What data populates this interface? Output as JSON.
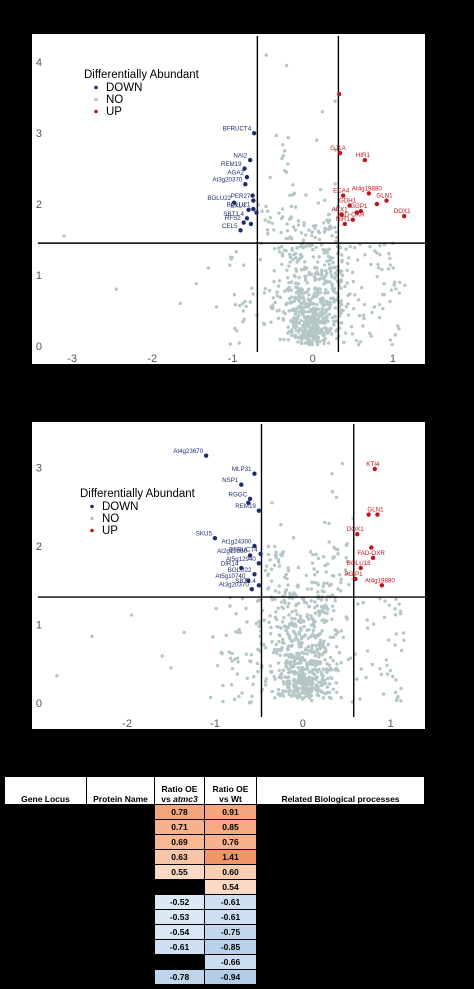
{
  "chart_data": [
    {
      "type": "scatter",
      "panel": "top",
      "xlabel": "",
      "ylabel": "",
      "xlim": [
        -3.3,
        1.3
      ],
      "ylim": [
        0,
        4.2
      ],
      "xticks": [
        -3,
        -2,
        -1,
        0,
        1
      ],
      "yticks": [
        0,
        1,
        2,
        3,
        4
      ],
      "thresholds": {
        "x": [
          -0.69,
          0.32
        ],
        "y": 1.45
      },
      "legend": {
        "title": "Differentially Abundant",
        "entries": [
          "DOWN",
          "NO",
          "UP"
        ],
        "position": "top-left"
      },
      "colors": {
        "DOWN": "#1f2d6b",
        "NO": "#b4c6c6",
        "UP": "#c0141e"
      },
      "down_points": [
        {
          "x": -0.73,
          "y": 3.0,
          "label": "BFRUCT4"
        },
        {
          "x": -0.78,
          "y": 2.62,
          "label": "NAI2"
        },
        {
          "x": -0.85,
          "y": 2.5,
          "label": "REM19"
        },
        {
          "x": -0.82,
          "y": 2.38,
          "label": "AGA2"
        },
        {
          "x": -0.84,
          "y": 2.28,
          "label": "At3g20370"
        },
        {
          "x": -0.74,
          "y": 2.05,
          "label": "PER27"
        },
        {
          "x": -0.98,
          "y": 2.02,
          "label": "BGLU22"
        },
        {
          "x": -0.8,
          "y": 1.92,
          "label": "EXL4"
        },
        {
          "x": -0.74,
          "y": 1.93,
          "label": "BGLU21"
        },
        {
          "x": -0.82,
          "y": 1.8,
          "label": "SBT1.4"
        },
        {
          "x": -0.86,
          "y": 1.74,
          "label": "RFS2"
        },
        {
          "x": -0.9,
          "y": 1.63,
          "label": "CEL5"
        },
        {
          "x": -0.75,
          "y": 2.12,
          "label": ""
        },
        {
          "x": -0.7,
          "y": 1.88,
          "label": ""
        },
        {
          "x": -0.77,
          "y": 1.72,
          "label": ""
        }
      ],
      "up_points": [
        {
          "x": 0.33,
          "y": 3.55,
          "label": ""
        },
        {
          "x": 0.34,
          "y": 2.72,
          "label": "GJ1A"
        },
        {
          "x": 0.65,
          "y": 2.62,
          "label": "HIR1"
        },
        {
          "x": 0.7,
          "y": 2.15,
          "label": "At4g19880"
        },
        {
          "x": 0.38,
          "y": 2.12,
          "label": "ECA4"
        },
        {
          "x": 0.46,
          "y": 1.98,
          "label": "GDH1"
        },
        {
          "x": 0.92,
          "y": 2.05,
          "label": "GLN1"
        },
        {
          "x": 0.6,
          "y": 1.9,
          "label": "GGP1"
        },
        {
          "x": 0.36,
          "y": 1.85,
          "label": "ACX1"
        },
        {
          "x": 0.5,
          "y": 1.78,
          "label": "FAD-OXR"
        },
        {
          "x": 0.4,
          "y": 1.72,
          "label": "NIR1"
        },
        {
          "x": 1.14,
          "y": 1.83,
          "label": "DOX1"
        },
        {
          "x": 0.8,
          "y": 2.0,
          "label": ""
        },
        {
          "x": 0.55,
          "y": 1.88,
          "label": ""
        }
      ],
      "no_points_outliers": [
        [
          -3.1,
          1.55
        ],
        [
          -2.45,
          0.8
        ],
        [
          -1.65,
          0.6
        ],
        [
          -1.45,
          0.88
        ],
        [
          -1.3,
          1.1
        ],
        [
          -1.2,
          0.55
        ],
        [
          -0.58,
          4.1
        ],
        [
          0.28,
          3.45
        ],
        [
          0.12,
          3.3
        ],
        [
          0.05,
          2.9
        ],
        [
          -0.35,
          2.75
        ],
        [
          0.82,
          1.1
        ],
        [
          0.95,
          1.3
        ]
      ]
    },
    {
      "type": "scatter",
      "panel": "bottom",
      "xlabel": "",
      "ylabel": "",
      "xlim": [
        -2.9,
        1.3
      ],
      "ylim": [
        -0.1,
        3.4
      ],
      "xticks": [
        -2,
        -1,
        0,
        1
      ],
      "yticks": [
        0,
        1,
        2,
        3
      ],
      "thresholds": {
        "x": [
          -0.47,
          0.58
        ],
        "y": 1.35
      },
      "legend": {
        "title": "Differentially Abundant",
        "entries": [
          "DOWN",
          "NO",
          "UP"
        ],
        "position": "top-left"
      },
      "colors": {
        "DOWN": "#1f2d6b",
        "NO": "#b4c6c6",
        "UP": "#c0141e"
      },
      "down_points": [
        {
          "x": -1.1,
          "y": 3.15,
          "label": "At4g23670"
        },
        {
          "x": -0.55,
          "y": 2.92,
          "label": "MLP31"
        },
        {
          "x": -0.7,
          "y": 2.78,
          "label": "NSP1"
        },
        {
          "x": -0.6,
          "y": 2.6,
          "label": "RGGC"
        },
        {
          "x": -0.5,
          "y": 2.45,
          "label": "REM19"
        },
        {
          "x": -1.0,
          "y": 2.1,
          "label": "SKU5"
        },
        {
          "x": -0.55,
          "y": 2.0,
          "label": "At1g24300"
        },
        {
          "x": -0.48,
          "y": 1.9,
          "label": "BFRUCT4"
        },
        {
          "x": -0.6,
          "y": 1.88,
          "label": "At2g19880"
        },
        {
          "x": -0.5,
          "y": 1.78,
          "label": "At5g12940"
        },
        {
          "x": -0.7,
          "y": 1.72,
          "label": "DIR14"
        },
        {
          "x": -0.55,
          "y": 1.64,
          "label": "BGLU22"
        },
        {
          "x": -0.62,
          "y": 1.56,
          "label": "At5g10740"
        },
        {
          "x": -0.5,
          "y": 1.5,
          "label": "SBT1.4"
        },
        {
          "x": -0.58,
          "y": 1.45,
          "label": "At3g20370"
        },
        {
          "x": -0.62,
          "y": 2.55,
          "label": ""
        }
      ],
      "up_points": [
        {
          "x": 0.82,
          "y": 2.98,
          "label": "KTI4"
        },
        {
          "x": 0.85,
          "y": 2.4,
          "label": "GLN1"
        },
        {
          "x": 0.62,
          "y": 2.15,
          "label": "DOX1"
        },
        {
          "x": 0.8,
          "y": 1.85,
          "label": "FAD-OXR"
        },
        {
          "x": 0.66,
          "y": 1.72,
          "label": "BGLU18"
        },
        {
          "x": 0.6,
          "y": 1.58,
          "label": "PGIP1"
        },
        {
          "x": 0.9,
          "y": 1.5,
          "label": "At4g19880"
        },
        {
          "x": 0.75,
          "y": 2.4,
          "label": ""
        },
        {
          "x": 0.78,
          "y": 1.98,
          "label": ""
        }
      ],
      "no_points_outliers": [
        [
          -2.8,
          0.35
        ],
        [
          -2.4,
          0.85
        ],
        [
          -1.95,
          1.12
        ],
        [
          -1.6,
          0.6
        ],
        [
          -1.5,
          0.45
        ],
        [
          -1.35,
          0.9
        ],
        [
          -0.35,
          2.55
        ],
        [
          0.25,
          2.3
        ],
        [
          0.3,
          2.05
        ],
        [
          0.4,
          1.9
        ],
        [
          1.05,
          1.2
        ],
        [
          1.15,
          0.8
        ],
        [
          0.95,
          0.55
        ]
      ]
    },
    {
      "type": "table",
      "columns": [
        "Gene Locus",
        "Protein Name",
        "Ratio OE vs atmc3",
        "Ratio OE vs Wt",
        "Related Biological processes"
      ],
      "column_header_parts": {
        "ratio_atmc3_line1": "Ratio OE",
        "ratio_atmc3_line2_prefix": "vs ",
        "ratio_atmc3_line2_italic": "atmc3",
        "ratio_wt_line1": "Ratio OE",
        "ratio_wt_line2": "vs Wt"
      },
      "rows": [
        {
          "gene": "",
          "protein": "",
          "ratio_atmc3": "0.78",
          "ratio_wt": "0.91",
          "process": "",
          "c1": "#f4a57c",
          "c2": "#f4a57c"
        },
        {
          "gene": "",
          "protein": "",
          "ratio_atmc3": "0.71",
          "ratio_wt": "0.85",
          "process": "",
          "c1": "#f6b28c",
          "c2": "#f5aa82"
        },
        {
          "gene": "",
          "protein": "",
          "ratio_atmc3": "0.69",
          "ratio_wt": "0.76",
          "process": "",
          "c1": "#f7b893",
          "c2": "#f6b28c"
        },
        {
          "gene": "",
          "protein": "",
          "ratio_atmc3": "0.63",
          "ratio_wt": "1.41",
          "process": "",
          "c1": "#f8c5a6",
          "c2": "#f29466"
        },
        {
          "gene": "",
          "protein": "",
          "ratio_atmc3": "0.55",
          "ratio_wt": "0.60",
          "process": "",
          "c1": "#fbd9c4",
          "c2": "#f9cdb2"
        },
        {
          "gene": "",
          "protein": "",
          "ratio_atmc3": "",
          "ratio_wt": "0.54",
          "process": "",
          "c1": "",
          "c2": "#fbd9c4"
        },
        {
          "gene": "",
          "protein": "",
          "ratio_atmc3": "-0.52",
          "ratio_wt": "-0.61",
          "process": "",
          "c1": "#dbe8f6",
          "c2": "#cfe0f2"
        },
        {
          "gene": "",
          "protein": "",
          "ratio_atmc3": "-0.53",
          "ratio_wt": "-0.61",
          "process": "",
          "c1": "#dbe8f6",
          "c2": "#cfe0f2"
        },
        {
          "gene": "",
          "protein": "",
          "ratio_atmc3": "-0.54",
          "ratio_wt": "-0.75",
          "process": "",
          "c1": "#d8e6f5",
          "c2": "#c3d8ee"
        },
        {
          "gene": "",
          "protein": "",
          "ratio_atmc3": "-0.61",
          "ratio_wt": "-0.85",
          "process": "",
          "c1": "#cfe0f2",
          "c2": "#b9d2eb"
        },
        {
          "gene": "",
          "protein": "",
          "ratio_atmc3": "",
          "ratio_wt": "-0.66",
          "process": "",
          "c1": "",
          "c2": "#cbddf1"
        },
        {
          "gene": "",
          "protein": "",
          "ratio_atmc3": "-0.78",
          "ratio_wt": "-0.94",
          "process": "",
          "c1": "#bfd5ec",
          "c2": "#b3cde9"
        }
      ]
    }
  ]
}
